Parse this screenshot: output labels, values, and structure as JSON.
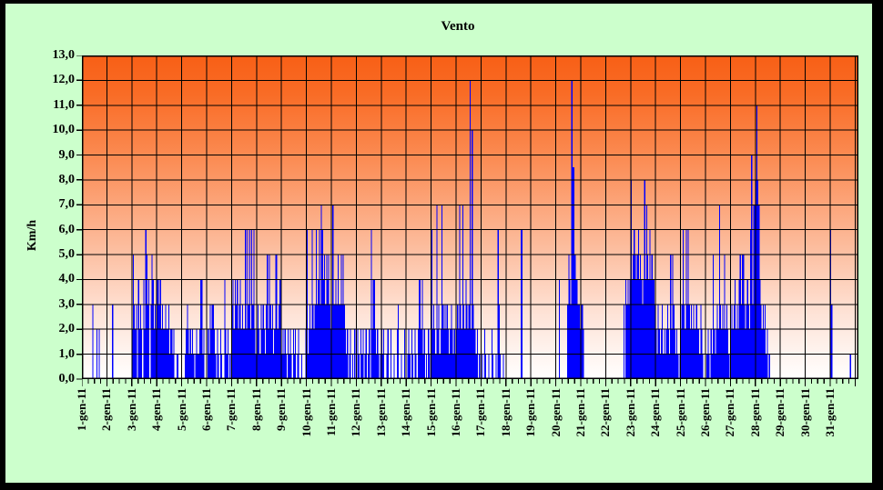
{
  "window": {
    "frame_color": "#000000",
    "panel_background": "#ccffcc"
  },
  "chart_data": {
    "type": "bar",
    "title": "Vento",
    "ylabel": "Km/h",
    "ylim": [
      0,
      13
    ],
    "y_tick_labels": [
      "0,0",
      "1,0",
      "2,0",
      "3,0",
      "4,0",
      "5,0",
      "6,0",
      "7,0",
      "8,0",
      "9,0",
      "10,0",
      "11,0",
      "12,0",
      "13,0"
    ],
    "categories": [
      "1-gen-11",
      "2-gen-11",
      "3-gen-11",
      "4-gen-11",
      "5-gen-11",
      "6-gen-11",
      "7-gen-11",
      "8-gen-11",
      "9-gen-11",
      "10-gen-11",
      "11-gen-11",
      "12-gen-11",
      "13-gen-11",
      "14-gen-11",
      "15-gen-11",
      "16-gen-11",
      "17-gen-11",
      "18-gen-11",
      "19-gen-11",
      "20-gen-11",
      "21-gen-11",
      "22-gen-11",
      "23-gen-11",
      "24-gen-11",
      "25-gen-11",
      "26-gen-11",
      "27-gen-11",
      "28-gen-11",
      "29-gen-11",
      "30-gen-11",
      "31-gen-11"
    ],
    "x_minor_ticks_per_day": 4,
    "grid": "on",
    "legend": "none",
    "bar_color": "#0000ff",
    "grid_color": "#000000",
    "plot_gradient_top": "#f85f16",
    "plot_gradient_bottom": "#ffffff",
    "series_unit": "Km/h per hour (24 values per day)",
    "values_per_hour_by_day": [
      [
        0,
        0,
        0,
        0,
        0,
        0,
        0,
        0,
        0,
        0,
        3,
        0,
        0,
        0,
        2,
        0,
        2,
        0,
        0,
        0,
        0,
        0,
        0,
        0
      ],
      [
        0,
        0,
        0,
        0,
        0,
        3,
        0,
        0,
        0,
        0,
        0,
        0,
        0,
        0,
        0,
        0,
        0,
        0,
        0,
        0,
        0,
        0,
        0,
        0
      ],
      [
        2,
        5,
        3,
        2,
        3,
        0,
        4,
        2,
        3,
        2,
        0,
        4,
        2,
        6,
        5,
        3,
        4,
        0,
        3,
        5,
        4,
        2,
        3,
        2
      ],
      [
        4,
        4,
        3,
        4,
        2,
        3,
        2,
        2,
        3,
        2,
        2,
        3,
        1,
        2,
        2,
        1,
        2,
        0,
        0,
        1,
        1,
        0,
        0,
        0
      ],
      [
        0,
        0,
        0,
        1,
        2,
        3,
        2,
        1,
        2,
        1,
        2,
        1,
        0,
        1,
        2,
        1,
        1,
        2,
        4,
        4,
        1,
        2,
        0,
        0
      ],
      [
        0,
        2,
        1,
        3,
        2,
        3,
        3,
        2,
        1,
        0,
        2,
        1,
        0,
        2,
        1,
        0,
        0,
        4,
        2,
        1,
        2,
        0,
        1,
        0
      ],
      [
        3,
        4,
        2,
        4,
        3,
        4,
        2,
        3,
        4,
        2,
        3,
        2,
        2,
        6,
        2,
        6,
        3,
        6,
        2,
        6,
        3,
        6,
        2,
        1
      ],
      [
        2,
        3,
        2,
        1,
        3,
        2,
        3,
        2,
        1,
        3,
        5,
        2,
        5,
        3,
        2,
        3,
        1,
        2,
        5,
        5,
        2,
        3,
        4,
        4
      ],
      [
        1,
        2,
        1,
        2,
        1,
        0,
        2,
        1,
        2,
        1,
        0,
        2,
        1,
        2,
        0,
        1,
        2,
        0,
        0,
        1,
        0,
        0,
        0,
        2
      ],
      [
        6,
        1,
        2,
        3,
        2,
        6,
        3,
        2,
        3,
        6,
        3,
        4,
        6,
        3,
        7,
        6,
        4,
        5,
        3,
        5,
        4,
        5,
        3,
        2
      ],
      [
        3,
        7,
        3,
        3,
        4,
        3,
        5,
        3,
        3,
        5,
        3,
        5,
        3,
        2,
        1,
        2,
        0,
        1,
        2,
        0,
        1,
        0,
        2,
        0
      ],
      [
        0,
        2,
        1,
        0,
        2,
        1,
        2,
        0,
        1,
        2,
        0,
        1,
        2,
        0,
        6,
        2,
        4,
        4,
        2,
        1,
        2,
        1,
        0,
        1
      ],
      [
        2,
        1,
        2,
        0,
        0,
        1,
        2,
        0,
        0,
        2,
        0,
        0,
        1,
        0,
        0,
        2,
        3,
        0,
        0,
        1,
        0,
        0,
        2,
        0
      ],
      [
        0,
        1,
        2,
        1,
        0,
        2,
        1,
        0,
        2,
        1,
        0,
        2,
        4,
        4,
        2,
        4,
        1,
        2,
        0,
        1,
        0,
        2,
        1,
        0
      ],
      [
        6,
        2,
        3,
        2,
        1,
        7,
        2,
        3,
        1,
        2,
        7,
        3,
        2,
        3,
        2,
        3,
        2,
        1,
        2,
        3,
        2,
        1,
        2,
        1
      ],
      [
        2,
        3,
        2,
        7,
        3,
        2,
        7,
        3,
        2,
        4,
        3,
        2,
        3,
        12,
        2,
        10,
        3,
        2,
        2,
        1,
        2,
        0,
        1,
        0
      ],
      [
        0,
        1,
        0,
        2,
        1,
        0,
        0,
        1,
        0,
        0,
        2,
        1,
        0,
        0,
        1,
        0,
        6,
        3,
        1,
        0,
        0,
        1,
        0,
        0
      ],
      [
        0,
        0,
        0,
        0,
        0,
        0,
        0,
        0,
        0,
        0,
        0,
        0,
        0,
        0,
        6,
        6,
        0,
        0,
        0,
        0,
        0,
        0,
        0,
        0
      ],
      [
        0,
        0,
        0,
        0,
        0,
        0,
        0,
        0,
        0,
        0,
        0,
        0,
        0,
        0,
        0,
        0,
        0,
        0,
        0,
        0,
        0,
        0,
        0,
        0
      ],
      [
        0,
        0,
        0,
        4,
        0,
        0,
        0,
        0,
        0,
        0,
        0,
        3,
        5,
        4,
        3,
        12,
        8.5,
        8.5,
        5,
        4,
        4,
        3,
        3,
        2
      ],
      [
        3,
        3,
        2,
        0,
        0,
        0,
        0,
        0,
        0,
        0,
        0,
        0,
        0,
        0,
        0,
        0,
        0,
        0,
        0,
        0,
        0,
        0,
        0,
        0
      ],
      [
        0,
        0,
        0,
        0,
        0,
        0,
        0,
        0,
        0,
        0,
        0,
        0,
        0,
        0,
        0,
        0,
        0,
        3,
        0,
        4,
        3,
        4,
        3,
        4
      ],
      [
        8,
        4,
        5,
        6,
        5,
        4,
        5,
        6,
        4,
        5,
        4,
        3,
        4,
        8,
        4,
        7,
        5,
        4,
        6,
        4,
        5,
        4,
        4,
        3
      ],
      [
        2,
        1,
        3,
        2,
        1,
        2,
        3,
        1,
        2,
        1,
        2,
        3,
        2,
        1,
        5,
        2,
        5,
        3,
        2,
        1,
        2,
        1,
        0,
        1
      ],
      [
        2,
        3,
        6,
        3,
        2,
        6,
        3,
        6,
        3,
        2,
        3,
        2,
        3,
        2,
        2,
        3,
        2,
        2,
        1,
        3,
        2,
        1,
        0,
        0
      ],
      [
        0,
        1,
        2,
        1,
        0,
        2,
        1,
        5,
        2,
        1,
        2,
        3,
        2,
        7,
        3,
        2,
        3,
        2,
        5,
        2,
        3,
        2,
        1,
        0
      ],
      [
        2,
        3,
        2,
        3,
        4,
        2,
        3,
        2,
        4,
        5,
        3,
        5,
        5,
        3,
        2,
        3,
        4,
        3,
        2,
        6,
        9,
        3,
        7,
        7
      ],
      [
        8,
        11,
        8,
        7,
        4,
        3,
        2,
        3,
        2,
        3,
        1,
        2,
        0,
        1,
        0,
        0,
        0,
        0,
        0,
        0,
        0,
        0,
        0,
        0
      ],
      [
        0,
        0,
        0,
        0,
        0,
        0,
        0,
        0,
        0,
        0,
        0,
        0,
        0,
        0,
        0,
        0,
        0,
        0,
        0,
        0,
        0,
        0,
        0,
        0
      ],
      [
        0,
        0,
        0,
        0,
        0,
        0,
        0,
        0,
        0,
        0,
        0,
        0,
        0,
        0,
        0,
        0,
        0,
        0,
        0,
        0,
        0,
        0,
        0,
        0
      ],
      [
        6,
        3,
        0,
        0,
        0,
        0,
        0,
        0,
        0,
        0,
        0,
        0,
        0,
        0,
        0,
        0,
        0,
        0,
        0,
        1,
        0,
        0,
        0,
        0
      ]
    ]
  }
}
